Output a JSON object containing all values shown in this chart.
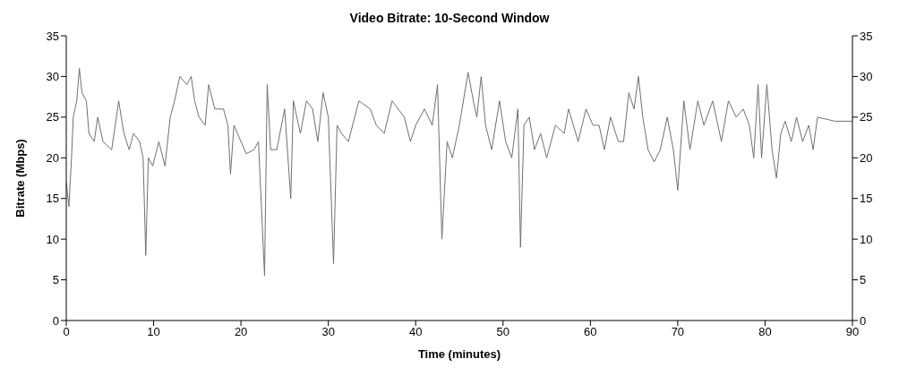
{
  "chart_data": {
    "type": "line",
    "title": "Video Bitrate: 10-Second Window",
    "xlabel": "Time (minutes)",
    "ylabel": "Bitrate (Mbps)",
    "x": [
      0,
      0.3,
      0.6,
      0.8,
      1.2,
      1.5,
      1.8,
      2.3,
      2.6,
      3.2,
      3.6,
      4.2,
      5.2,
      5.6,
      6,
      6.6,
      7.2,
      7.7,
      8.4,
      8.8,
      9.1,
      9.4,
      9.9,
      10.6,
      11.3,
      11.9,
      12.4,
      13,
      13.8,
      14.3,
      14.7,
      15.2,
      15.9,
      16.3,
      17,
      18,
      18.5,
      18.8,
      19.2,
      20,
      20.6,
      21.5,
      22,
      22.7,
      23,
      23.4,
      24.1,
      25,
      25.7,
      26,
      26.8,
      27.5,
      28.2,
      28.8,
      29.4,
      30,
      30.6,
      31,
      31.5,
      32.3,
      33.5,
      34.8,
      35.5,
      36.4,
      37.3,
      38.7,
      39.4,
      40,
      41,
      41.9,
      42.5,
      43,
      43.6,
      44.2,
      45,
      46,
      46.6,
      47,
      47.5,
      48,
      48.7,
      49.6,
      50.3,
      51,
      51.7,
      52,
      52.4,
      53,
      53.6,
      54.3,
      55,
      56,
      57,
      57.5,
      58.6,
      59.5,
      60.3,
      61,
      61.6,
      62.3,
      63.2,
      63.8,
      64.4,
      65,
      65.5,
      66,
      66.6,
      67.3,
      68,
      68.8,
      69.5,
      70,
      70.7,
      71.4,
      72.3,
      73,
      74,
      75,
      75.8,
      76.7,
      77.5,
      78.2,
      78.7,
      79.2,
      79.6,
      80.2,
      80.8,
      81.3,
      81.8,
      82.3,
      83,
      83.6,
      84.3,
      85,
      85.5,
      86,
      88,
      90
    ],
    "series": [
      {
        "color": "#707070",
        "values": [
          17,
          14,
          20,
          25,
          27,
          31,
          28,
          27,
          23,
          22,
          25,
          22,
          21,
          24,
          27,
          23,
          21,
          23,
          22,
          20,
          8,
          20,
          19,
          22,
          19,
          25,
          27,
          30,
          29,
          30,
          27,
          25,
          24,
          29,
          26,
          26,
          24,
          18,
          24,
          22,
          20.5,
          21,
          22,
          5.5,
          29,
          21,
          21,
          26,
          15,
          27,
          23,
          27,
          26,
          22,
          28,
          25,
          7,
          24,
          23,
          22,
          27,
          26,
          24,
          23,
          27,
          25,
          22,
          24,
          26,
          24,
          29,
          10,
          22,
          20,
          24,
          30.5,
          27,
          25,
          30,
          24,
          21,
          27,
          22,
          20,
          26,
          9,
          24,
          25,
          21,
          23,
          20,
          24,
          23,
          26,
          22,
          26,
          24,
          24,
          21,
          25,
          22,
          22,
          28,
          26,
          30,
          25,
          21,
          19.5,
          21,
          25,
          21,
          16,
          27,
          21,
          27,
          24,
          27,
          22,
          27,
          25,
          26,
          24,
          20,
          29,
          20,
          29,
          21,
          17.5,
          23,
          24.5,
          22,
          25,
          22,
          24,
          21,
          25,
          24.5,
          24.5
        ]
      }
    ],
    "xlim": [
      0,
      90
    ],
    "xticks": [
      0,
      10,
      20,
      30,
      40,
      50,
      60,
      70,
      80,
      90
    ],
    "ylim": [
      0,
      35
    ],
    "yticks": [
      0,
      5,
      10,
      15,
      20,
      25,
      30,
      35
    ],
    "y2lim": [
      0,
      35
    ],
    "y2ticks": [
      0,
      5,
      10,
      15,
      20,
      25,
      30,
      35
    ],
    "grid": false,
    "legend": false,
    "marker": "none",
    "line_style": "solid"
  }
}
